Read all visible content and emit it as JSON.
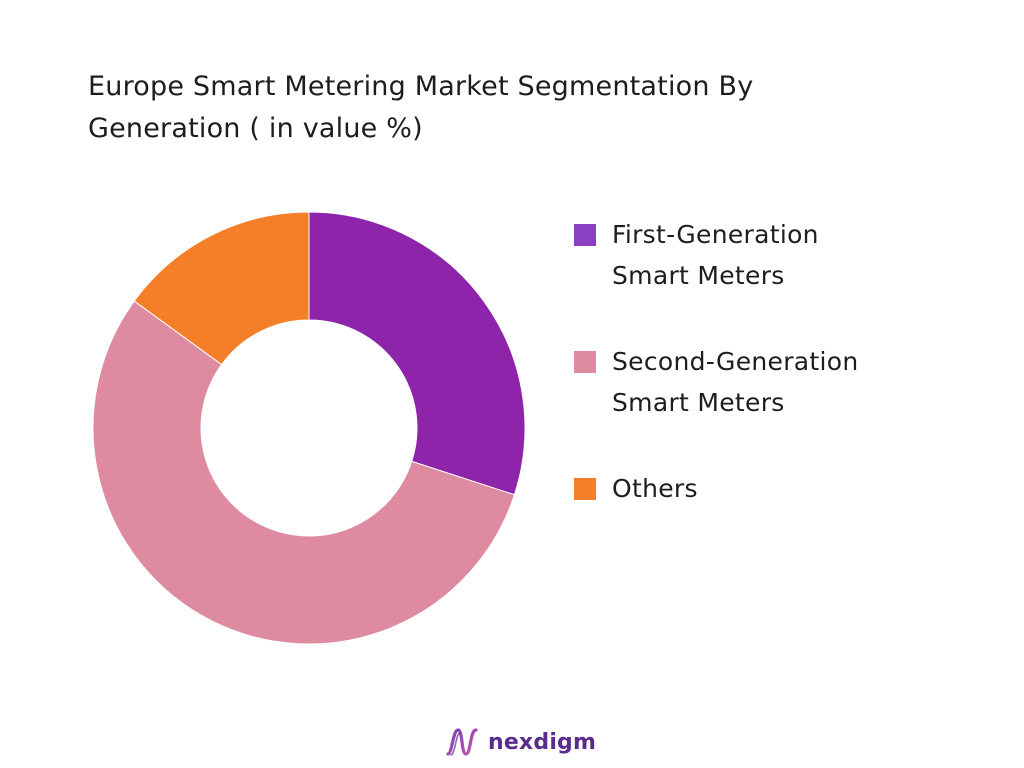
{
  "title": "Europe Smart Metering Market Segmentation By Generation ( in value %)",
  "chart_data": {
    "type": "pie",
    "donut": true,
    "title": "Europe Smart Metering Market Segmentation By Generation ( in value %)",
    "categories": [
      "First-Generation Smart Meters",
      "Second-Generation Smart Meters",
      "Others"
    ],
    "values": [
      30,
      55,
      15
    ],
    "colors": [
      "#8d24aa",
      "#de8aa0",
      "#f57e28"
    ],
    "legend_labels": [
      "First-Generation Smart Meters",
      "Second-Generation Smart Meters",
      "Others"
    ],
    "legend_swatch_colors": [
      "#8b3fc2",
      "#de8aa0",
      "#f57e28"
    ],
    "legend_position": "right",
    "start_angle": "top",
    "direction": "clockwise"
  },
  "branding": {
    "logo_text": "nexdigm",
    "logo_color": "#5a2d8c",
    "icon": "nexdigm-wave-icon"
  }
}
